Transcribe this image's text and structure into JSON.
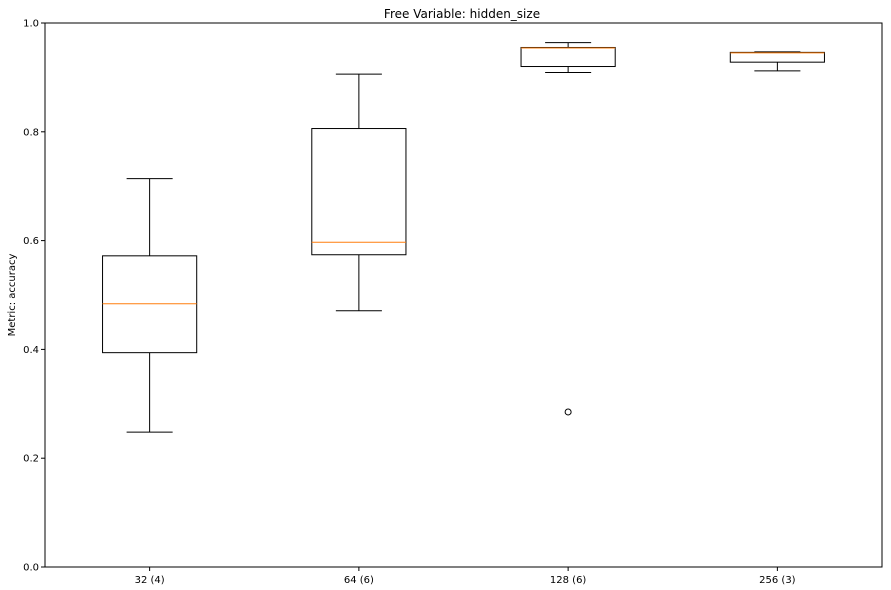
{
  "chart_data": {
    "type": "box",
    "title": "Free Variable: hidden_size",
    "xlabel": "",
    "ylabel": "Metric: accuracy",
    "ylim": [
      0.0,
      1.0
    ],
    "yticks": [
      "0.0",
      "0.2",
      "0.4",
      "0.6",
      "0.8",
      "1.0"
    ],
    "categories": [
      "32 (4)",
      "64 (6)",
      "128 (6)",
      "256 (3)"
    ],
    "boxes": [
      {
        "whisker_low": 0.248,
        "q1": 0.394,
        "median": 0.484,
        "q3": 0.572,
        "whisker_high": 0.714,
        "outliers": []
      },
      {
        "whisker_low": 0.471,
        "q1": 0.574,
        "median": 0.597,
        "q3": 0.806,
        "whisker_high": 0.906,
        "outliers": []
      },
      {
        "whisker_low": 0.909,
        "q1": 0.92,
        "median": 0.954,
        "q3": 0.955,
        "whisker_high": 0.964,
        "outliers": [
          0.285
        ]
      },
      {
        "whisker_low": 0.912,
        "q1": 0.928,
        "median": 0.945,
        "q3": 0.946,
        "whisker_high": 0.947,
        "outliers": []
      }
    ],
    "grid": false,
    "colors": {
      "box": "#000000",
      "median": "#ff7f0e",
      "background": "#ffffff"
    }
  }
}
